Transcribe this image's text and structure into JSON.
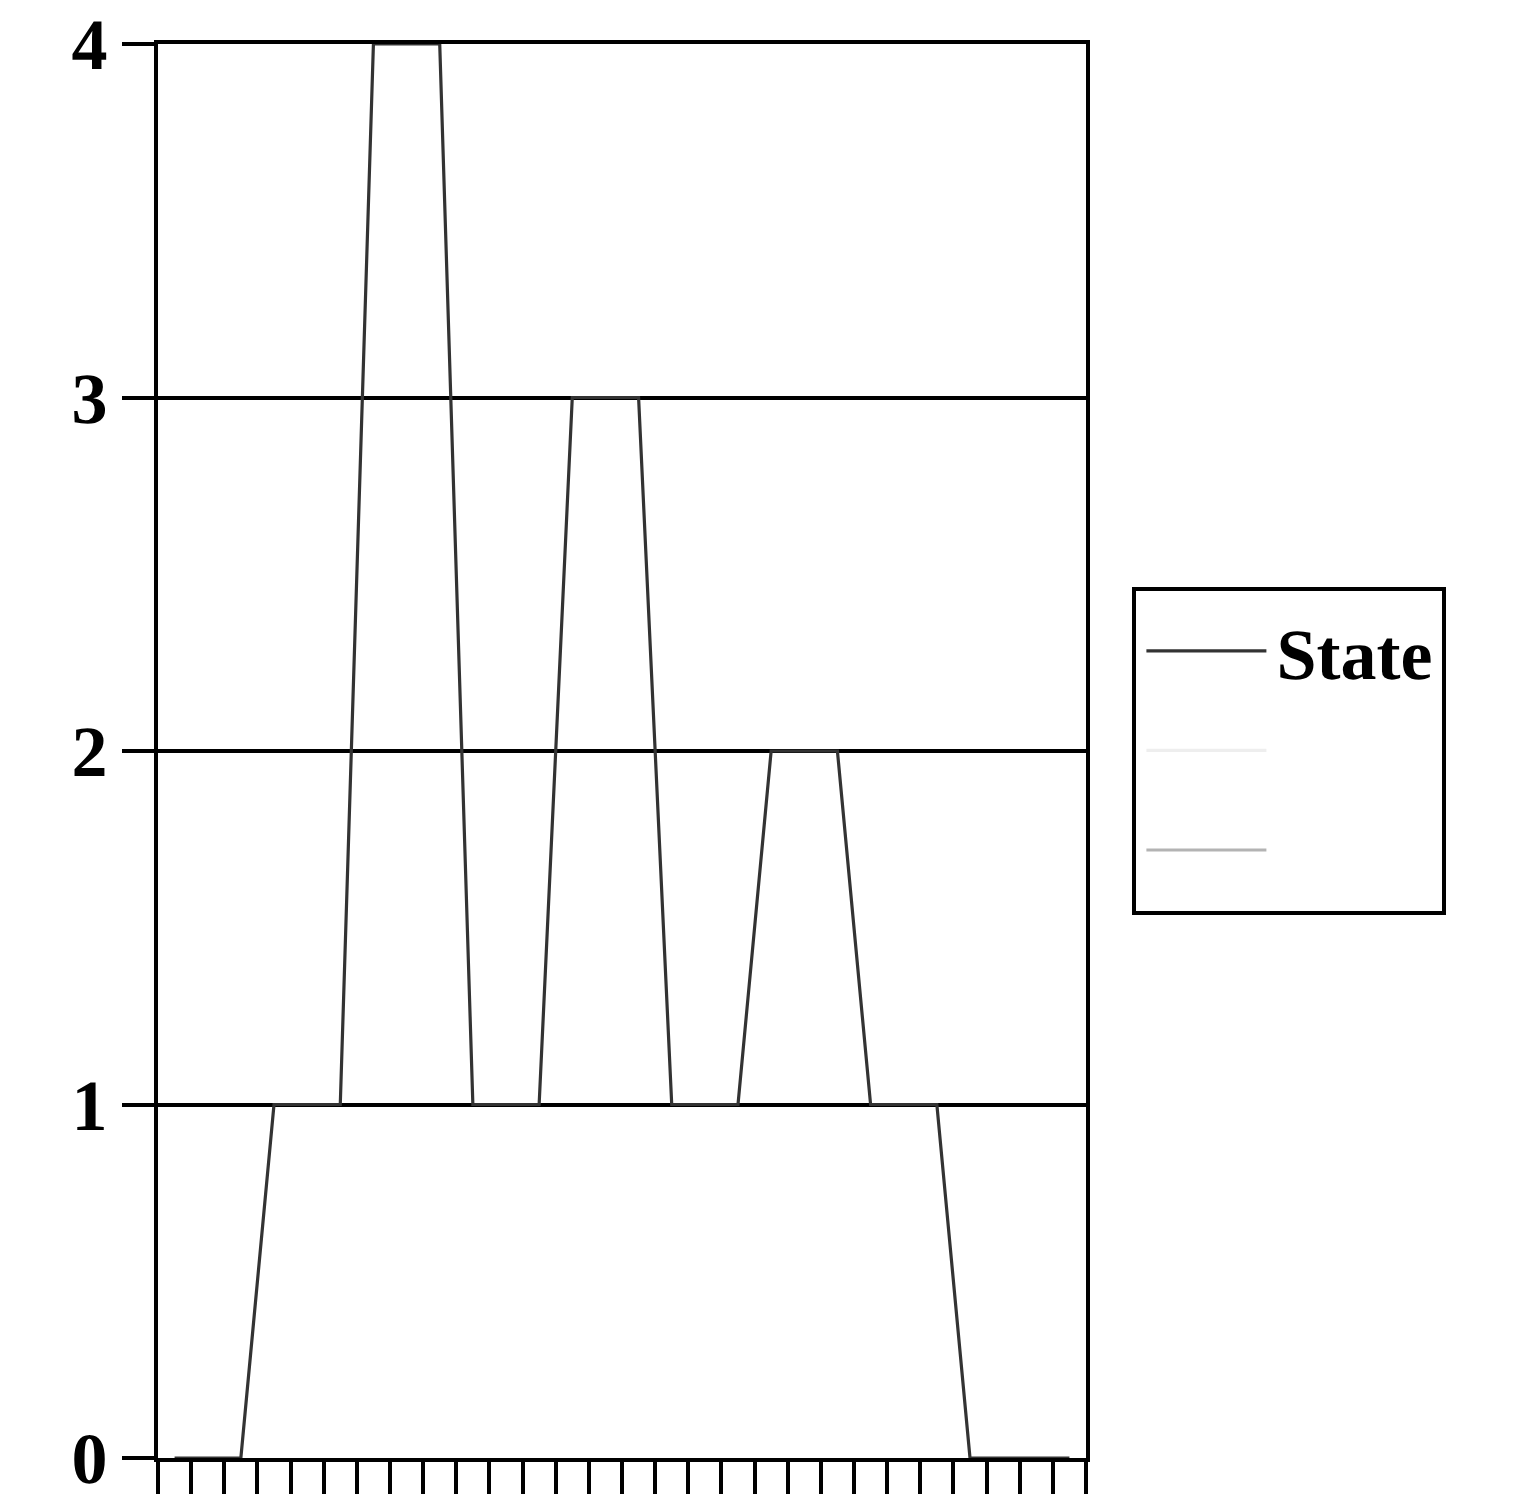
{
  "chart_data": {
    "type": "line",
    "categories": [
      null,
      null,
      null,
      null,
      null,
      null,
      null,
      null,
      null,
      null,
      null,
      null,
      null,
      null,
      null,
      null,
      null,
      null,
      null,
      null,
      null,
      null,
      null,
      null,
      null,
      null,
      null,
      null
    ],
    "series": [
      {
        "name": "State",
        "color": "#333333",
        "values": [
          0,
          0,
          0,
          1,
          1,
          1,
          4,
          4,
          4,
          1,
          1,
          1,
          3,
          3,
          3,
          1,
          1,
          1,
          2,
          2,
          2,
          1,
          1,
          1,
          0,
          0,
          0,
          0
        ]
      },
      {
        "color": "#eeeeee",
        "values": [
          null,
          null,
          null,
          null,
          null,
          null,
          null,
          null,
          null,
          null,
          null,
          null,
          null,
          null,
          null,
          null,
          null,
          null,
          null,
          null,
          null,
          null,
          null,
          null,
          null,
          null,
          null,
          null
        ]
      },
      {
        "color": "#b3b3b3",
        "values": [
          null,
          null,
          null,
          null,
          null,
          null,
          null,
          null,
          null,
          null,
          null,
          null,
          null,
          null,
          null,
          null,
          null,
          null,
          null,
          null,
          null,
          null,
          null,
          null,
          null,
          null,
          null,
          null
        ]
      }
    ],
    "ylim": [
      0,
      4
    ],
    "yticks": [
      0,
      1,
      2,
      3,
      4
    ],
    "grid": "y",
    "legend": "right",
    "marker": "none",
    "line_style": "solid"
  }
}
